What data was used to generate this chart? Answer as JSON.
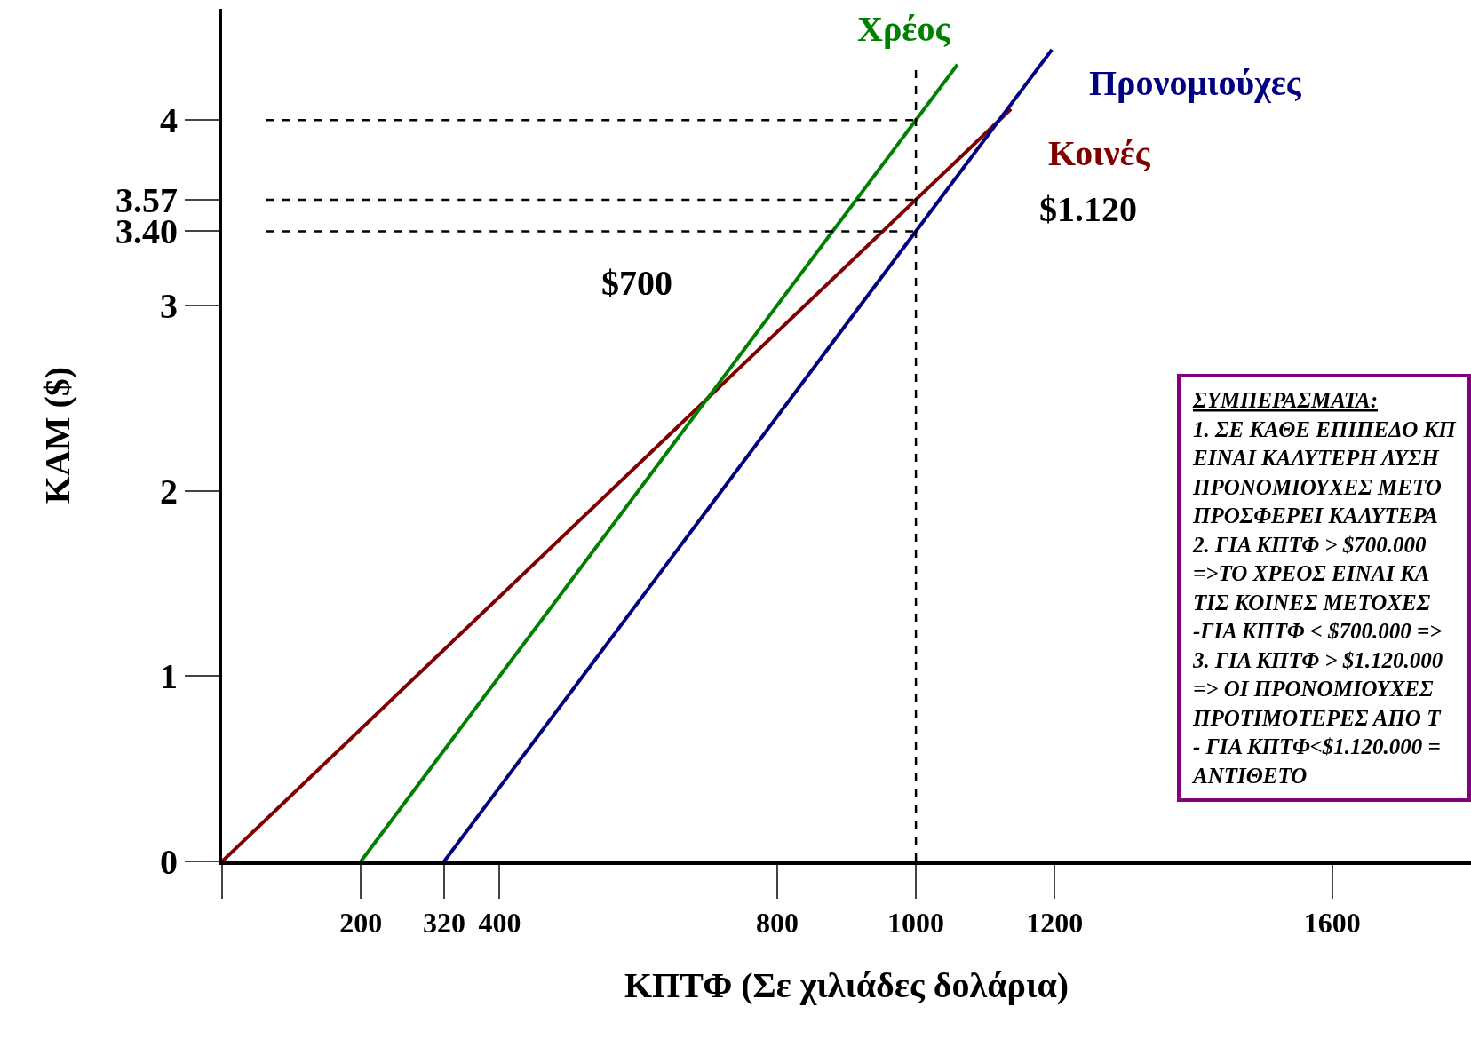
{
  "chart_data": {
    "type": "line",
    "xlabel": "ΚΠΤΦ (Σε χιλιάδες δολάρια)",
    "ylabel": "ΚΑΜ ($)",
    "series": [
      {
        "name": "Κοινές",
        "color": "#800000",
        "x": [
          0,
          1137
        ],
        "values": [
          0,
          4.06
        ]
      },
      {
        "name": "Χρέος",
        "color": "#008000",
        "x": [
          200,
          1060
        ],
        "values": [
          0,
          4.3
        ]
      },
      {
        "name": "Προνομιούχες",
        "color": "#000080",
        "x": [
          320,
          1196
        ],
        "values": [
          0,
          4.38
        ]
      }
    ],
    "xlim": [
      0,
      1800
    ],
    "xticks": [
      {
        "value": 0,
        "label": null
      },
      200,
      320,
      400,
      800,
      1000,
      1200,
      1600
    ],
    "ylim": [
      0,
      4.6
    ],
    "yticks": [
      0,
      1,
      2,
      3,
      {
        "value": 3.4,
        "label": "3.40"
      },
      3.57,
      4
    ],
    "grid": false,
    "legend": false,
    "marker": "none",
    "line_style": "solid",
    "ref_lines": [
      {
        "axis": "x",
        "value": 1000,
        "color": "#000000",
        "line_style": "dashed"
      },
      {
        "axis": "y",
        "value": 4,
        "color": "#000000",
        "line_style": "dashed"
      },
      {
        "axis": "y",
        "value": 3.57,
        "color": "#000000",
        "line_style": "dashed"
      },
      {
        "axis": "y",
        "value": 3.4,
        "color": "#000000",
        "line_style": "dashed"
      }
    ],
    "annotations": [
      {
        "text": "$700",
        "x": 700,
        "y": 2.5
      },
      {
        "text": "$1.120",
        "x": 1120,
        "y": 4
      },
      "ΣΥΜΠΕΡΑΣΜΑΤΑ:\n1. ΣΕ ΚΑΘΕ ΕΠΙΠΕΔΟ ΚΠ\nΕΙΝΑΙ ΚΑΛΥΤΕΡΗ ΛΥΣΗ\nΠΡΟΝΟΜΙΟΥΧΕΣ ΜΕΤΟ\nΠΡΟΣΦΕΡΕΙ ΚΑΛΥΤΕΡΑ\n2. ΓΙΑ ΚΠΤΦ > $700.000\n=>ΤΟ ΧΡΕΟΣ ΕΙΝΑΙ ΚΑ\nΤΙΣ ΚΟΙΝΕΣ ΜΕΤΟΧΕΣ\n-ΓΙΑ ΚΠΤΦ < $700.000 =>\n3. ΓΙΑ ΚΠΤΦ > $1.120.000\n=> ΟΙ ΠΡΟΝΟΜΙΟΥΧΕΣ\nΠΡΟΤΙΜΟΤΕΡΕΣ ΑΠΟ Τ\n- ΓΙΑ ΚΠΤΦ<$1.120.000 =\nΑΝΤΙΘΕΤΟ"
    ]
  }
}
